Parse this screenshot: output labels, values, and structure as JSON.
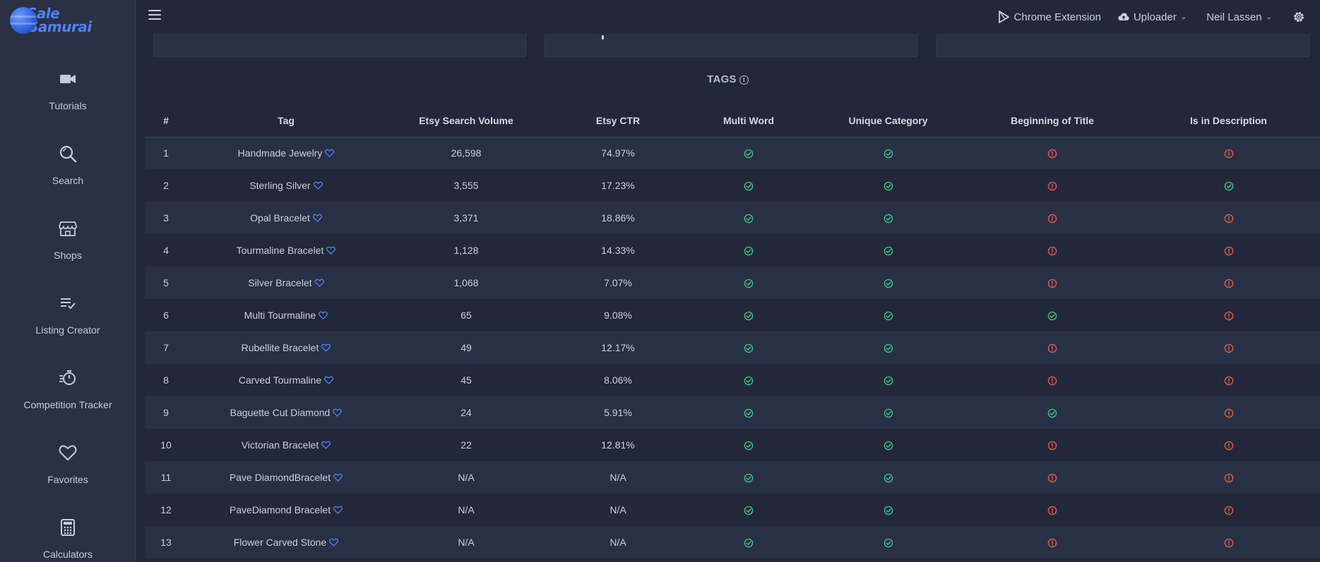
{
  "brand": {
    "line1": "Sale",
    "line2": "Samurai",
    "color": "#4e82f5"
  },
  "sidebar": {
    "items": [
      {
        "label": "Tutorials",
        "icon": "video-camera-icon"
      },
      {
        "label": "Search",
        "icon": "search-icon"
      },
      {
        "label": "Shops",
        "icon": "storefront-icon"
      },
      {
        "label": "Listing Creator",
        "icon": "list-check-icon"
      },
      {
        "label": "Competition Tracker",
        "icon": "stopwatch-icon"
      },
      {
        "label": "Favorites",
        "icon": "heart-icon"
      },
      {
        "label": "Calculators",
        "icon": "calculator-icon"
      }
    ]
  },
  "topbar": {
    "chrome_extension": "Chrome Extension",
    "uploader": "Uploader",
    "user": "Neil Lassen"
  },
  "section": {
    "title": "TAGS"
  },
  "table": {
    "headers": [
      "#",
      "Tag",
      "Etsy Search Volume",
      "Etsy CTR",
      "Multi Word",
      "Unique Category",
      "Beginning of Title",
      "Is in Description"
    ],
    "rows": [
      {
        "n": "1",
        "tag": "Handmade Jewelry",
        "volume": "26,598",
        "ctr": "74.97%",
        "multi": "ok",
        "unique": "ok",
        "begin": "warn",
        "desc": "warn"
      },
      {
        "n": "2",
        "tag": "Sterling Silver",
        "volume": "3,555",
        "ctr": "17.23%",
        "multi": "ok",
        "unique": "ok",
        "begin": "warn",
        "desc": "ok"
      },
      {
        "n": "3",
        "tag": "Opal Bracelet",
        "volume": "3,371",
        "ctr": "18.86%",
        "multi": "ok",
        "unique": "ok",
        "begin": "warn",
        "desc": "warn"
      },
      {
        "n": "4",
        "tag": "Tourmaline Bracelet",
        "volume": "1,128",
        "ctr": "14.33%",
        "multi": "ok",
        "unique": "ok",
        "begin": "warn",
        "desc": "warn"
      },
      {
        "n": "5",
        "tag": "Silver Bracelet",
        "volume": "1,068",
        "ctr": "7.07%",
        "multi": "ok",
        "unique": "ok",
        "begin": "warn",
        "desc": "warn"
      },
      {
        "n": "6",
        "tag": "Multi Tourmaline",
        "volume": "65",
        "ctr": "9.08%",
        "multi": "ok",
        "unique": "ok",
        "begin": "ok",
        "desc": "warn"
      },
      {
        "n": "7",
        "tag": "Rubellite Bracelet",
        "volume": "49",
        "ctr": "12.17%",
        "multi": "ok",
        "unique": "ok",
        "begin": "warn",
        "desc": "warn"
      },
      {
        "n": "8",
        "tag": "Carved Tourmaline",
        "volume": "45",
        "ctr": "8.06%",
        "multi": "ok",
        "unique": "ok",
        "begin": "warn",
        "desc": "warn"
      },
      {
        "n": "9",
        "tag": "Baguette Cut Diamond",
        "volume": "24",
        "ctr": "5.91%",
        "multi": "ok",
        "unique": "ok",
        "begin": "ok",
        "desc": "warn"
      },
      {
        "n": "10",
        "tag": "Victorian Bracelet",
        "volume": "22",
        "ctr": "12.81%",
        "multi": "ok",
        "unique": "ok",
        "begin": "warn",
        "desc": "warn"
      },
      {
        "n": "11",
        "tag": "Pave DiamondBracelet",
        "volume": "N/A",
        "ctr": "N/A",
        "multi": "ok",
        "unique": "ok",
        "begin": "warn",
        "desc": "warn"
      },
      {
        "n": "12",
        "tag": "PaveDiamond Bracelet",
        "volume": "N/A",
        "ctr": "N/A",
        "multi": "ok",
        "unique": "ok",
        "begin": "warn",
        "desc": "warn"
      },
      {
        "n": "13",
        "tag": "Flower Carved Stone",
        "volume": "N/A",
        "ctr": "N/A",
        "multi": "ok",
        "unique": "ok",
        "begin": "warn",
        "desc": "warn"
      }
    ]
  },
  "colors": {
    "ok": "#3fbf7f",
    "warn": "#e05a4f",
    "heart": "#4e82f5"
  }
}
